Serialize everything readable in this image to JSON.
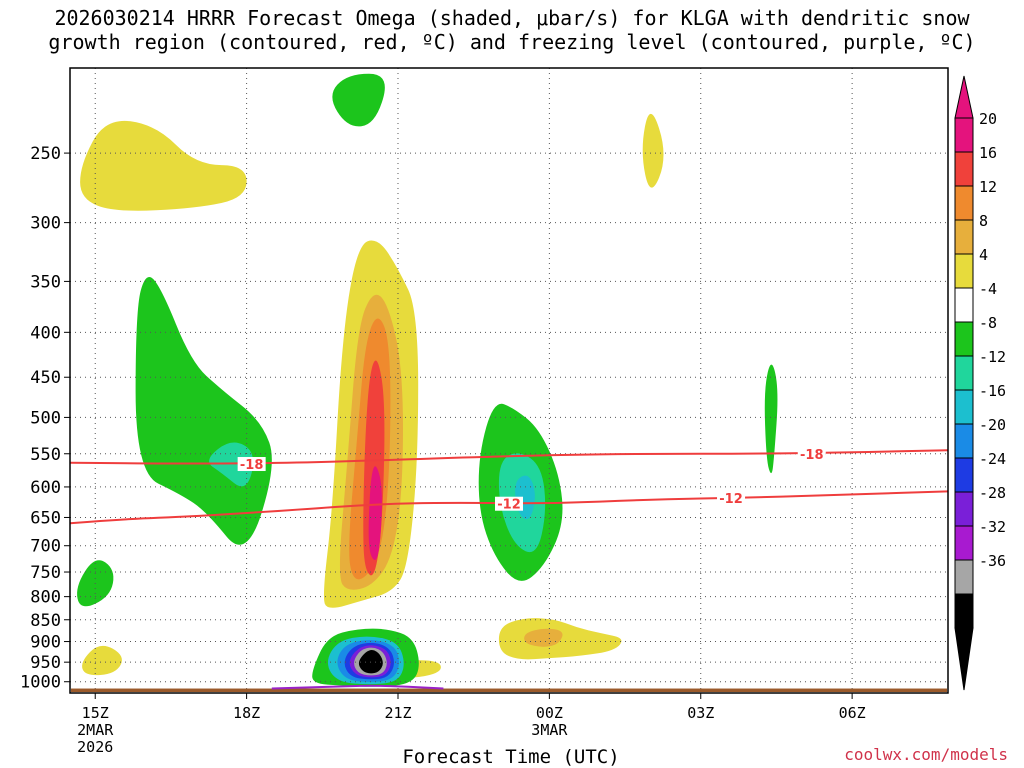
{
  "title": {
    "line1": "2026030214 HRRR Forecast Omega (shaded, μbar/s) for KLGA with dendritic snow",
    "line2": "growth region (contoured, red, ºC) and freezing level (contoured, purple, ºC)"
  },
  "credit": "coolwx.com/models",
  "chart_data": {
    "type": "contour",
    "title": "2026030214 HRRR Forecast Omega (shaded, μbar/s) for KLGA with dendritic snow growth region (contoured, red, ºC) and freezing level (contoured, purple, ºC)",
    "xlabel": "Forecast Time (UTC)",
    "ylabel": "",
    "x_unit": "hours from 14Z 2 MAR 2026",
    "xlim": [
      0.5,
      17.9
    ],
    "ylim": [
      1030,
      200
    ],
    "y_scale": "log",
    "y_ticks": [
      250,
      300,
      350,
      400,
      450,
      500,
      550,
      600,
      650,
      700,
      750,
      800,
      850,
      900,
      950,
      1000
    ],
    "x_ticks": [
      {
        "x": 1,
        "lines": [
          "15Z",
          "2MAR",
          "2026"
        ]
      },
      {
        "x": 4,
        "lines": [
          "18Z"
        ]
      },
      {
        "x": 7,
        "lines": [
          "21Z"
        ]
      },
      {
        "x": 10,
        "lines": [
          "00Z",
          "3MAR"
        ]
      },
      {
        "x": 13,
        "lines": [
          "03Z"
        ]
      },
      {
        "x": 16,
        "lines": [
          "06Z"
        ]
      }
    ],
    "grid": true,
    "colorbar": {
      "labels": [
        "20",
        "16",
        "12",
        "8",
        "4",
        "-4",
        "-8",
        "-12",
        "-16",
        "-20",
        "-24",
        "-28",
        "-32",
        "-36"
      ],
      "colors": [
        "#e4137d",
        "#f0413b",
        "#ef8a2e",
        "#e7af3c",
        "#e7db3c",
        "#ffffff",
        "#1cc51c",
        "#20d69c",
        "#1cbfcf",
        "#1a8be6",
        "#1e3be3",
        "#7a1fd8",
        "#a81ad0",
        "#a6a6a6",
        "#000000"
      ],
      "top_triangle": "#e4137d",
      "bottom_triangle": "#000000"
    },
    "omega_features": [
      {
        "color": "#e7db3c",
        "pts": [
          [
            0.7,
            258
          ],
          [
            1.2,
            228
          ],
          [
            2.2,
            232
          ],
          [
            3.0,
            258
          ],
          [
            4.0,
            258
          ],
          [
            4.0,
            281
          ],
          [
            3.0,
            289
          ],
          [
            1.4,
            292
          ],
          [
            0.7,
            282
          ]
        ]
      },
      {
        "color": "#1cc51c",
        "pts": [
          [
            6.0,
            203
          ],
          [
            6.85,
            203
          ],
          [
            6.55,
            232
          ],
          [
            6.0,
            234
          ],
          [
            5.6,
            215
          ]
        ]
      },
      {
        "color": "#e7db3c",
        "pts": [
          [
            12.0,
            218
          ],
          [
            12.35,
            252
          ],
          [
            12.0,
            282
          ],
          [
            11.8,
            248
          ]
        ]
      },
      {
        "color": "#1cc51c",
        "pts": [
          [
            1.8,
            378
          ],
          [
            2.0,
            341
          ],
          [
            2.3,
            355
          ],
          [
            2.9,
            432
          ],
          [
            3.5,
            465
          ],
          [
            4.3,
            505
          ],
          [
            4.6,
            565
          ],
          [
            4.0,
            729
          ],
          [
            3.2,
            640
          ],
          [
            2.7,
            612
          ],
          [
            1.8,
            578
          ]
        ]
      },
      {
        "color": "#20d69c",
        "pts": [
          [
            3.15,
            560
          ],
          [
            3.7,
            528
          ],
          [
            4.2,
            548
          ],
          [
            4.0,
            610
          ],
          [
            3.5,
            578
          ]
        ]
      },
      {
        "color": "#1cc51c",
        "pts": [
          [
            0.6,
            780
          ],
          [
            1.0,
            718
          ],
          [
            1.4,
            745
          ],
          [
            1.3,
            800
          ],
          [
            0.7,
            830
          ]
        ]
      },
      {
        "color": "#e7db3c",
        "pts": [
          [
            0.7,
            950
          ],
          [
            1.1,
            900
          ],
          [
            1.6,
            935
          ],
          [
            1.4,
            980
          ],
          [
            0.8,
            985
          ]
        ]
      },
      {
        "color": "#e7db3c",
        "pts": [
          [
            5.5,
            800
          ],
          [
            5.7,
            640
          ],
          [
            5.9,
            400
          ],
          [
            6.2,
            318
          ],
          [
            6.6,
            312
          ],
          [
            7.0,
            338
          ],
          [
            7.4,
            378
          ],
          [
            7.4,
            560
          ],
          [
            7.2,
            740
          ],
          [
            6.9,
            790
          ],
          [
            6.3,
            808
          ],
          [
            5.6,
            830
          ]
        ]
      },
      {
        "color": "#e7af3c",
        "pts": [
          [
            5.8,
            760
          ],
          [
            6.0,
            560
          ],
          [
            6.2,
            395
          ],
          [
            6.5,
            358
          ],
          [
            6.8,
            370
          ],
          [
            7.1,
            440
          ],
          [
            7.1,
            600
          ],
          [
            6.9,
            720
          ],
          [
            6.5,
            778
          ],
          [
            6.0,
            790
          ]
        ]
      },
      {
        "color": "#ef8a2e",
        "pts": [
          [
            6.0,
            705
          ],
          [
            6.2,
            520
          ],
          [
            6.35,
            410
          ],
          [
            6.6,
            378
          ],
          [
            6.85,
            410
          ],
          [
            6.85,
            560
          ],
          [
            6.7,
            700
          ],
          [
            6.4,
            760
          ],
          [
            6.1,
            768
          ]
        ]
      },
      {
        "color": "#f0413b",
        "pts": [
          [
            6.3,
            680
          ],
          [
            6.35,
            520
          ],
          [
            6.45,
            440
          ],
          [
            6.6,
            425
          ],
          [
            6.75,
            480
          ],
          [
            6.7,
            650
          ],
          [
            6.55,
            762
          ],
          [
            6.35,
            750
          ]
        ]
      },
      {
        "color": "#e4137d",
        "pts": [
          [
            6.4,
            705
          ],
          [
            6.45,
            590
          ],
          [
            6.55,
            560
          ],
          [
            6.7,
            600
          ],
          [
            6.65,
            700
          ],
          [
            6.55,
            735
          ]
        ]
      },
      {
        "color": "#1cc51c",
        "pts": [
          [
            8.6,
            550
          ],
          [
            8.9,
            478
          ],
          [
            9.3,
            488
          ],
          [
            9.8,
            515
          ],
          [
            10.2,
            580
          ],
          [
            10.3,
            660
          ],
          [
            9.9,
            740
          ],
          [
            9.4,
            780
          ],
          [
            8.9,
            720
          ],
          [
            8.6,
            640
          ]
        ]
      },
      {
        "color": "#20d69c",
        "pts": [
          [
            9.0,
            560
          ],
          [
            9.4,
            545
          ],
          [
            9.85,
            568
          ],
          [
            9.95,
            640
          ],
          [
            9.75,
            720
          ],
          [
            9.3,
            700
          ],
          [
            9.0,
            630
          ]
        ]
      },
      {
        "color": "#1cbfcf",
        "pts": [
          [
            9.3,
            590
          ],
          [
            9.6,
            578
          ],
          [
            9.75,
            615
          ],
          [
            9.6,
            660
          ],
          [
            9.35,
            640
          ]
        ]
      },
      {
        "color": "#1cc51c",
        "pts": [
          [
            14.25,
            465
          ],
          [
            14.4,
            426
          ],
          [
            14.55,
            465
          ],
          [
            14.45,
            560
          ],
          [
            14.4,
            585
          ],
          [
            14.3,
            560
          ]
        ]
      },
      {
        "color": "#e7db3c",
        "pts": [
          [
            9.0,
            865
          ],
          [
            9.5,
            845
          ],
          [
            10.1,
            848
          ],
          [
            10.55,
            868
          ],
          [
            11.0,
            880
          ],
          [
            11.5,
            892
          ],
          [
            11.3,
            922
          ],
          [
            10.6,
            935
          ],
          [
            10.0,
            940
          ],
          [
            9.4,
            945
          ],
          [
            9.0,
            925
          ]
        ]
      },
      {
        "color": "#e7af3c",
        "pts": [
          [
            9.5,
            880
          ],
          [
            9.9,
            868
          ],
          [
            10.3,
            875
          ],
          [
            10.2,
            905
          ],
          [
            9.9,
            915
          ],
          [
            9.5,
            905
          ]
        ]
      },
      {
        "color": "#e7db3c",
        "pts": [
          [
            7.0,
            945
          ],
          [
            7.85,
            945
          ],
          [
            7.85,
            980
          ],
          [
            7.0,
            995
          ]
        ]
      },
      {
        "color": "#1cc51c",
        "pts": [
          [
            5.3,
            968
          ],
          [
            5.6,
            888
          ],
          [
            6.2,
            870
          ],
          [
            6.8,
            870
          ],
          [
            7.3,
            890
          ],
          [
            7.45,
            955
          ],
          [
            7.3,
            1005
          ],
          [
            6.6,
            1015
          ],
          [
            5.9,
            1010
          ],
          [
            5.3,
            1005
          ]
        ]
      },
      {
        "color": "#1cbfcf",
        "pts": [
          [
            5.55,
            952
          ],
          [
            5.8,
            898
          ],
          [
            6.4,
            885
          ],
          [
            7.0,
            900
          ],
          [
            7.15,
            955
          ],
          [
            7.0,
            1000
          ],
          [
            6.5,
            1008
          ],
          [
            5.8,
            1002
          ]
        ]
      },
      {
        "color": "#1a8be6",
        "pts": [
          [
            5.75,
            950
          ],
          [
            5.95,
            905
          ],
          [
            6.5,
            893
          ],
          [
            6.95,
            910
          ],
          [
            7.05,
            955
          ],
          [
            6.9,
            995
          ],
          [
            6.45,
            1002
          ],
          [
            5.95,
            995
          ]
        ]
      },
      {
        "color": "#1e3be3",
        "pts": [
          [
            5.9,
            950
          ],
          [
            6.1,
            910
          ],
          [
            6.5,
            900
          ],
          [
            6.85,
            915
          ],
          [
            6.95,
            955
          ],
          [
            6.8,
            990
          ],
          [
            6.45,
            995
          ],
          [
            6.05,
            988
          ]
        ]
      },
      {
        "color": "#7a1fd8",
        "pts": [
          [
            6.0,
            950
          ],
          [
            6.2,
            915
          ],
          [
            6.5,
            906
          ],
          [
            6.8,
            920
          ],
          [
            6.88,
            955
          ],
          [
            6.75,
            985
          ],
          [
            6.45,
            990
          ],
          [
            6.15,
            983
          ]
        ]
      },
      {
        "color": "#a6a6a6",
        "pts": [
          [
            6.1,
            950
          ],
          [
            6.25,
            920
          ],
          [
            6.5,
            912
          ],
          [
            6.72,
            925
          ],
          [
            6.8,
            955
          ],
          [
            6.7,
            980
          ],
          [
            6.45,
            985
          ],
          [
            6.2,
            978
          ]
        ]
      },
      {
        "color": "#000000",
        "pts": [
          [
            6.2,
            950
          ],
          [
            6.35,
            925
          ],
          [
            6.5,
            918
          ],
          [
            6.65,
            930
          ],
          [
            6.72,
            955
          ],
          [
            6.62,
            975
          ],
          [
            6.45,
            980
          ],
          [
            6.28,
            972
          ]
        ]
      }
    ],
    "dgz_contours": [
      {
        "label": "-18",
        "label_at": [
          [
            4.1,
            565
          ],
          [
            15.2,
            550
          ]
        ],
        "pts": [
          [
            0.5,
            563
          ],
          [
            3.0,
            565
          ],
          [
            5.0,
            563
          ],
          [
            6.5,
            560
          ],
          [
            8.0,
            556
          ],
          [
            10.0,
            552
          ],
          [
            12.0,
            550
          ],
          [
            14.0,
            550
          ],
          [
            16.0,
            548
          ],
          [
            17.9,
            545
          ]
        ]
      },
      {
        "label": "-12",
        "label_at": [
          [
            9.2,
            627
          ],
          [
            13.6,
            618
          ]
        ],
        "pts": [
          [
            0.5,
            660
          ],
          [
            1.5,
            653
          ],
          [
            3.0,
            648
          ],
          [
            5.0,
            637
          ],
          [
            6.5,
            628
          ],
          [
            8.0,
            625
          ],
          [
            10.0,
            627
          ],
          [
            12.0,
            620
          ],
          [
            14.0,
            617
          ],
          [
            16.0,
            612
          ],
          [
            17.9,
            607
          ]
        ]
      }
    ],
    "freezing_level": [
      [
        4.5,
        1018
      ],
      [
        6.0,
        1012
      ],
      [
        6.5,
        1010
      ],
      [
        7.2,
        1013
      ],
      [
        7.9,
        1018
      ]
    ],
    "ground_color": "#9b5a2a"
  }
}
